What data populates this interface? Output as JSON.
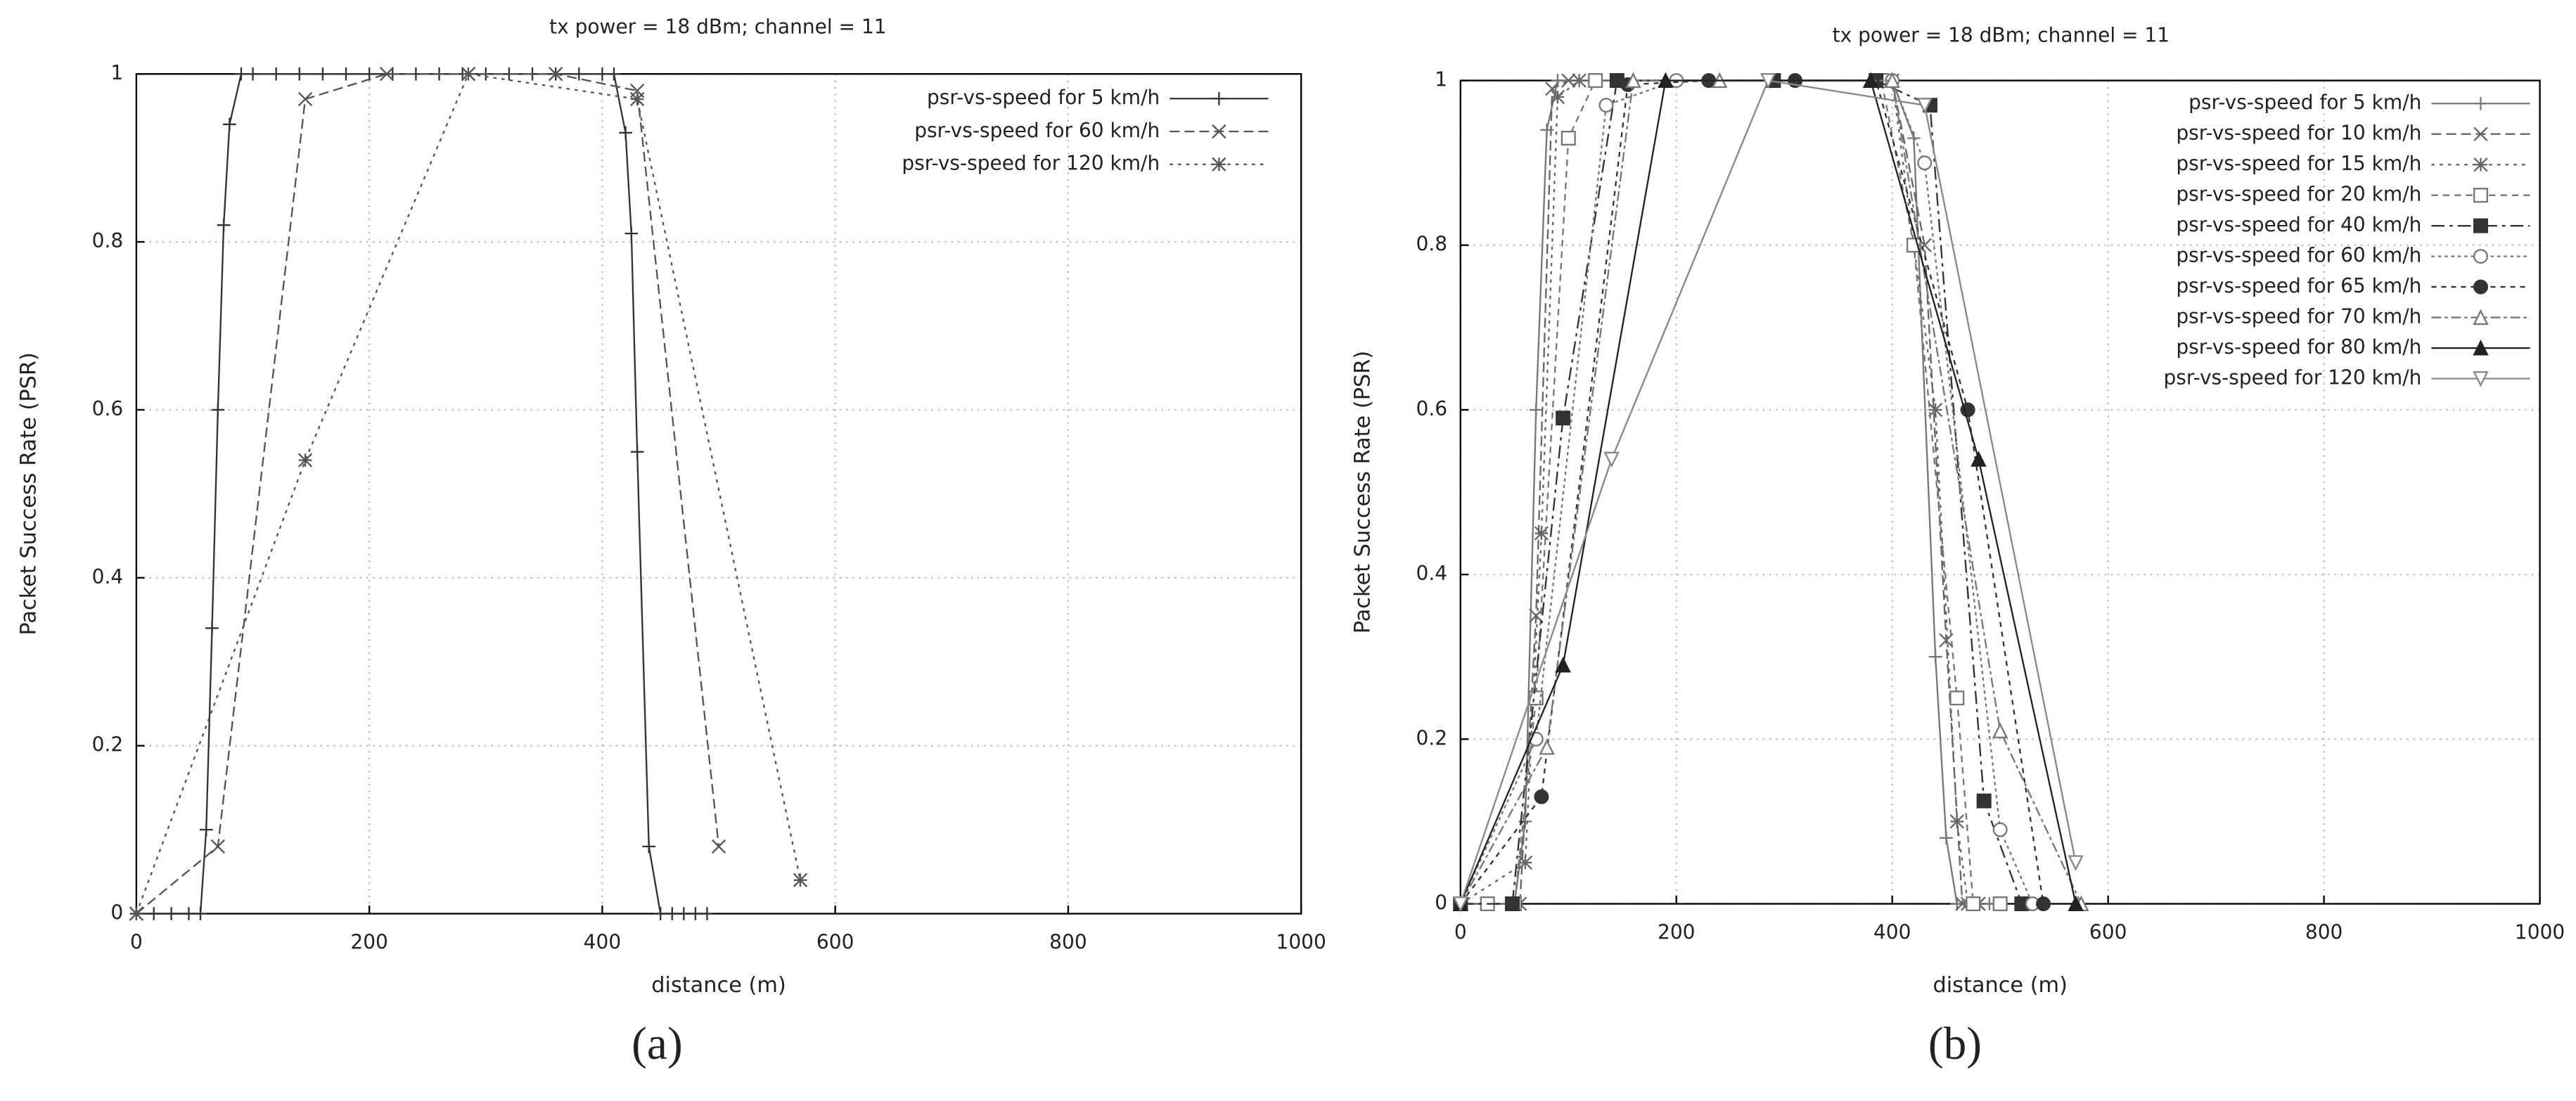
{
  "chart_data": [
    {
      "type": "line",
      "title": "tx power = 18 dBm; channel = 11",
      "caption": "(a)",
      "xlabel": "distance (m)",
      "ylabel": "Packet Success Rate (PSR)",
      "xlim": [
        0,
        1000
      ],
      "ylim": [
        0,
        1
      ],
      "xticks": [
        0,
        200,
        400,
        600,
        800,
        1000
      ],
      "yticks": [
        0,
        0.2,
        0.4,
        0.6,
        0.8,
        1
      ],
      "grid": true,
      "legend": "upper right",
      "series": [
        {
          "name": "psr-vs-speed for 5 km/h",
          "color": "#333333",
          "marker": "plus",
          "dash": "none",
          "x": [
            0,
            15,
            30,
            45,
            55,
            60,
            65,
            70,
            75,
            80,
            90,
            100,
            120,
            140,
            160,
            180,
            200,
            220,
            240,
            260,
            280,
            300,
            320,
            340,
            360,
            380,
            400,
            410,
            420,
            425,
            430,
            440,
            450,
            460,
            470,
            480,
            490
          ],
          "values": [
            0,
            0,
            0,
            0,
            0,
            0.1,
            0.34,
            0.6,
            0.82,
            0.94,
            1,
            1,
            1,
            1,
            1,
            1,
            1,
            1,
            1,
            1,
            1,
            1,
            1,
            1,
            1,
            1,
            1,
            1,
            0.93,
            0.81,
            0.55,
            0.08,
            0,
            0,
            0,
            0,
            0
          ]
        },
        {
          "name": "psr-vs-speed for 60 km/h",
          "color": "#555555",
          "marker": "cross",
          "dash": "6 3",
          "x": [
            0,
            70,
            145,
            215,
            285,
            360,
            430,
            500
          ],
          "values": [
            0,
            0.08,
            0.97,
            1,
            1,
            1,
            0.98,
            0.08
          ]
        },
        {
          "name": "psr-vs-speed for 120 km/h",
          "color": "#555555",
          "marker": "star",
          "dash": "2 3",
          "x": [
            0,
            145,
            285,
            430,
            570
          ],
          "values": [
            0,
            0.54,
            1,
            0.97,
            0.04
          ]
        }
      ]
    },
    {
      "type": "line",
      "title": "tx power = 18 dBm; channel = 11",
      "caption": "(b)",
      "xlabel": "distance (m)",
      "ylabel": "Packet Success Rate (PSR)",
      "xlim": [
        0,
        1000
      ],
      "ylim": [
        0,
        1
      ],
      "xticks": [
        0,
        200,
        400,
        600,
        800,
        1000
      ],
      "yticks": [
        0,
        0.2,
        0.4,
        0.6,
        0.8,
        1
      ],
      "grid": true,
      "legend": "upper right",
      "series": [
        {
          "name": "psr-vs-speed for 5 km/h",
          "color": "#777777",
          "marker": "plus",
          "dash": "none",
          "x": [
            0,
            50,
            60,
            70,
            80,
            90,
            400,
            420,
            440,
            450,
            460,
            490
          ],
          "values": [
            0,
            0,
            0.1,
            0.6,
            0.94,
            1,
            1,
            0.93,
            0.3,
            0.08,
            0,
            0
          ]
        },
        {
          "name": "psr-vs-speed for 10 km/h",
          "color": "#666666",
          "marker": "cross",
          "dash": "6 3",
          "x": [
            0,
            55,
            70,
            85,
            100,
            400,
            430,
            450,
            465,
            480
          ],
          "values": [
            0,
            0,
            0.35,
            0.99,
            1,
            1,
            0.8,
            0.32,
            0,
            0
          ]
        },
        {
          "name": "psr-vs-speed for 15 km/h",
          "color": "#666666",
          "marker": "star",
          "dash": "2 3",
          "x": [
            0,
            60,
            75,
            90,
            110,
            400,
            440,
            460,
            470,
            480
          ],
          "values": [
            0,
            0.05,
            0.45,
            0.98,
            1,
            1,
            0.6,
            0.1,
            0,
            0
          ]
        },
        {
          "name": "psr-vs-speed for 20 km/h",
          "color": "#777777",
          "marker": "square",
          "dash": "4 3",
          "x": [
            0,
            25,
            50,
            70,
            100,
            125,
            390,
            420,
            460,
            475,
            500
          ],
          "values": [
            0,
            0,
            0,
            0.25,
            0.93,
            1,
            1,
            0.8,
            0.25,
            0,
            0
          ]
        },
        {
          "name": "psr-vs-speed for 40 km/h",
          "color": "#333333",
          "marker": "square-filled",
          "dash": "8 3 2 3",
          "x": [
            0,
            48,
            95,
            145,
            290,
            385,
            435,
            485,
            520
          ],
          "values": [
            0,
            0,
            0.59,
            1,
            1,
            1,
            0.97,
            0.125,
            0
          ]
        },
        {
          "name": "psr-vs-speed for 60 km/h",
          "color": "#777777",
          "marker": "circle",
          "dash": "2 2",
          "x": [
            0,
            70,
            135,
            200,
            400,
            430,
            500,
            530
          ],
          "values": [
            0,
            0.2,
            0.97,
            1,
            1,
            0.9,
            0.09,
            0
          ]
        },
        {
          "name": "psr-vs-speed for 65 km/h",
          "color": "#333333",
          "marker": "circle-filled",
          "dash": "3 3",
          "x": [
            0,
            75,
            155,
            230,
            310,
            385,
            470,
            540
          ],
          "values": [
            0,
            0.13,
            0.995,
            1,
            1,
            1,
            0.6,
            0
          ]
        },
        {
          "name": "psr-vs-speed for 70 km/h",
          "color": "#777777",
          "marker": "triangle",
          "dash": "6 2 2 2",
          "x": [
            0,
            80,
            160,
            240,
            400,
            500,
            575
          ],
          "values": [
            0,
            0.19,
            1,
            1,
            1,
            0.21,
            0
          ]
        },
        {
          "name": "psr-vs-speed for 80 km/h",
          "color": "#222222",
          "marker": "triangle-filled",
          "dash": "none",
          "x": [
            0,
            95,
            190,
            380,
            480,
            570
          ],
          "values": [
            0,
            0.29,
            1,
            1,
            0.54,
            0
          ]
        },
        {
          "name": "psr-vs-speed for 120 km/h",
          "color": "#888888",
          "marker": "triangle-down",
          "dash": "none",
          "x": [
            0,
            140,
            285,
            430,
            570
          ],
          "values": [
            0,
            0.54,
            1,
            0.97,
            0.05
          ]
        }
      ]
    }
  ]
}
